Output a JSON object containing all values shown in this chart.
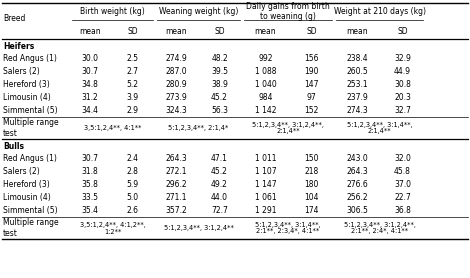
{
  "col_groups": [
    {
      "label": "Birth weight (kg)",
      "cols": [
        1,
        2
      ]
    },
    {
      "label": "Weaning weight (kg)",
      "cols": [
        3,
        4
      ]
    },
    {
      "label": "Daily gains from birth\nto weaning (g)",
      "cols": [
        5,
        6
      ]
    },
    {
      "label": "Weight at 210 days (kg)",
      "cols": [
        7,
        8
      ]
    }
  ],
  "sub_headers": [
    "mean",
    "SD",
    "mean",
    "SD",
    "mean",
    "SD",
    "mean",
    "SD"
  ],
  "sections": [
    {
      "header": "Heifers",
      "rows": [
        {
          "breed": "Red Angus (1)",
          "data": [
            "30.0",
            "2.5",
            "274.9",
            "48.2",
            "992",
            "156",
            "238.4",
            "32.9"
          ]
        },
        {
          "breed": "Salers (2)",
          "data": [
            "30.7",
            "2.7",
            "287.0",
            "39.5",
            "1 088",
            "190",
            "260.5",
            "44.9"
          ]
        },
        {
          "breed": "Hereford (3)",
          "data": [
            "34.8",
            "5.2",
            "280.9",
            "38.9",
            "1 040",
            "147",
            "253.1",
            "30.8"
          ]
        },
        {
          "breed": "Limousin (4)",
          "data": [
            "31.2",
            "3.9",
            "273.9",
            "45.2",
            "984",
            "97",
            "237.9",
            "20.3"
          ]
        },
        {
          "breed": "Simmental (5)",
          "data": [
            "34.4",
            "2.9",
            "324.3",
            "56.3",
            "1 142",
            "152",
            "274.3",
            "32.7"
          ]
        }
      ],
      "mrt_label": "Multiple range\ntest",
      "mrt": [
        "3,5:1,2,4**, 4:1**",
        "5:1,2,3,4**, 2:1,4*",
        "5:1,2,3,4**, 3:1,2,4**,\n2:1,4**",
        "5:1,2,3,4**, 3:1,4**,\n2:1,4**"
      ]
    },
    {
      "header": "Bulls",
      "rows": [
        {
          "breed": "Red Angus (1)",
          "data": [
            "30.7",
            "2.4",
            "264.3",
            "47.1",
            "1 011",
            "150",
            "243.0",
            "32.0"
          ]
        },
        {
          "breed": "Salers (2)",
          "data": [
            "31.8",
            "2.8",
            "272.1",
            "45.2",
            "1 107",
            "218",
            "264.3",
            "45.8"
          ]
        },
        {
          "breed": "Hereford (3)",
          "data": [
            "35.8",
            "5.9",
            "296.2",
            "49.2",
            "1 147",
            "180",
            "276.6",
            "37.0"
          ]
        },
        {
          "breed": "Limousin (4)",
          "data": [
            "33.5",
            "5.0",
            "271.1",
            "44.0",
            "1 061",
            "104",
            "256.2",
            "22.7"
          ]
        },
        {
          "breed": "Simmental (5)",
          "data": [
            "35.4",
            "2.6",
            "357.2",
            "72.7",
            "1 291",
            "174",
            "306.5",
            "36.8"
          ]
        }
      ],
      "mrt_label": "Multiple range\ntest",
      "mrt": [
        "3,5:1,2,4**, 4:1,2**,\n1:2**",
        "5:1,2,3,4**, 3:1,2,4**",
        "5:1,2,3,4**, 3:1,4**,\n2:1**, 2:3,4*, 4:1**",
        "5:1,2,3,4**, 3:1,2,4**,\n2:1**, 2:4*, 4:1**"
      ]
    }
  ],
  "figsize": [
    4.7,
    2.78
  ],
  "dpi": 100
}
